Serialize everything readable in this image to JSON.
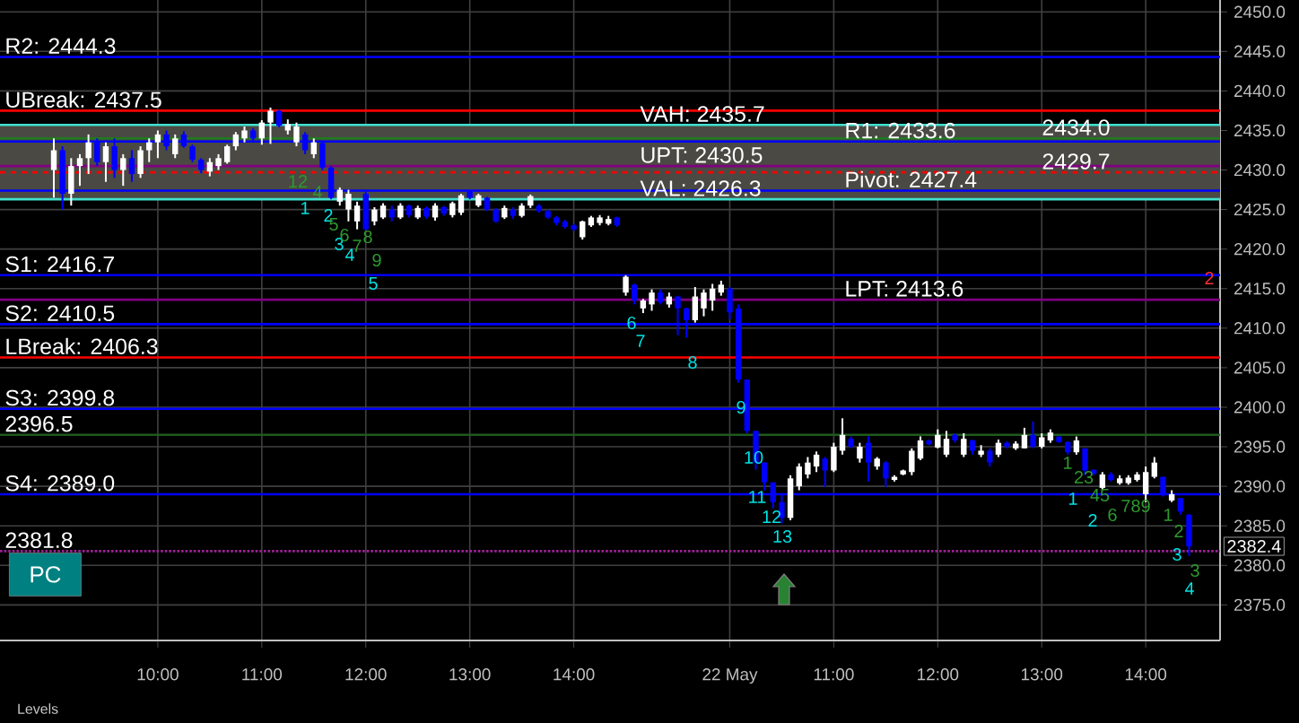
{
  "chart_data": {
    "type": "candlestick",
    "categories": [
      null,
      null,
      null,
      null,
      null,
      null,
      null,
      null,
      null,
      null,
      null,
      null,
      "10:00",
      null,
      null,
      null,
      null,
      null,
      null,
      null,
      null,
      null,
      null,
      null,
      "11:00",
      null,
      null,
      null,
      null,
      null,
      null,
      null,
      null,
      null,
      null,
      null,
      "12:00",
      null,
      null,
      null,
      null,
      null,
      null,
      null,
      null,
      null,
      null,
      null,
      "13:00",
      null,
      null,
      null,
      null,
      null,
      null,
      null,
      null,
      null,
      null,
      null,
      "14:00",
      null,
      null,
      null,
      null,
      null,
      null,
      null,
      null,
      null,
      null,
      null,
      null,
      null,
      null,
      null,
      null,
      null,
      "22 May",
      null,
      null,
      null,
      null,
      null,
      null,
      null,
      null,
      null,
      null,
      null,
      "11:00",
      null,
      null,
      null,
      null,
      null,
      null,
      null,
      null,
      null,
      null,
      null,
      "12:00",
      null,
      null,
      null,
      null,
      null,
      null,
      null,
      null,
      null,
      null,
      null,
      "13:00",
      null,
      null,
      null,
      null,
      null,
      null,
      null,
      null,
      null,
      null,
      null,
      "14:00",
      null,
      null,
      null,
      null,
      null
    ],
    "ohlc": [
      [
        2430.0,
        2434.0,
        2426.5,
        2432.5
      ],
      [
        2432.5,
        2433.0,
        2425.0,
        2427.0
      ],
      [
        2427.0,
        2431.5,
        2425.5,
        2430.5
      ],
      [
        2430.5,
        2432.0,
        2428.0,
        2431.5
      ],
      [
        2431.5,
        2434.5,
        2429.5,
        2433.5
      ],
      [
        2433.5,
        2434.0,
        2430.5,
        2431.0
      ],
      [
        2431.0,
        2433.5,
        2428.5,
        2433.0
      ],
      [
        2433.0,
        2434.0,
        2429.0,
        2430.0
      ],
      [
        2430.0,
        2432.0,
        2428.0,
        2431.5
      ],
      [
        2431.5,
        2432.5,
        2428.5,
        2429.5
      ],
      [
        2429.5,
        2433.0,
        2429.0,
        2432.5
      ],
      [
        2432.5,
        2434.0,
        2431.0,
        2433.5
      ],
      [
        2433.5,
        2435.0,
        2431.5,
        2434.5
      ],
      [
        2434.5,
        2435.0,
        2432.5,
        2433.0
      ],
      [
        2432.0,
        2434.5,
        2431.5,
        2434.0
      ],
      [
        2434.5,
        2434.9,
        2432.8,
        2433.0
      ],
      [
        2433.0,
        2433.2,
        2431.0,
        2431.3
      ],
      [
        2431.3,
        2431.5,
        2429.6,
        2430.0
      ],
      [
        2429.8,
        2431.5,
        2429.2,
        2431.0
      ],
      [
        2430.5,
        2432.0,
        2430.0,
        2431.5
      ],
      [
        2431.0,
        2433.2,
        2430.8,
        2433.0
      ],
      [
        2433.0,
        2434.8,
        2432.5,
        2434.5
      ],
      [
        2434.0,
        2435.5,
        2433.5,
        2435.0
      ],
      [
        2435.0,
        2435.3,
        2433.6,
        2434.0
      ],
      [
        2434.0,
        2436.3,
        2433.2,
        2436.0
      ],
      [
        2436.0,
        2437.9,
        2433.3,
        2437.5
      ],
      [
        2437.5,
        2437.6,
        2435.4,
        2435.6
      ],
      [
        2435.0,
        2436.4,
        2434.5,
        2435.8
      ],
      [
        2433.5,
        2436.0,
        2433.0,
        2435.5
      ],
      [
        2434.5,
        2434.8,
        2432.0,
        2432.5
      ],
      [
        2432.0,
        2434.0,
        2431.5,
        2433.5
      ],
      [
        2433.4,
        2433.5,
        2430.0,
        2430.3
      ],
      [
        2430.3,
        2430.5,
        2426.3,
        2426.5
      ],
      [
        2426.0,
        2427.8,
        2425.5,
        2427.5
      ],
      [
        2425.0,
        2427.5,
        2423.5,
        2427.0
      ],
      [
        2423.5,
        2426.0,
        2422.5,
        2425.5
      ],
      [
        2427.0,
        2427.3,
        2422.4,
        2422.5
      ],
      [
        2423.5,
        2425.3,
        2423.0,
        2425.0
      ],
      [
        2424.0,
        2425.8,
        2423.8,
        2425.5
      ],
      [
        2425.0,
        2425.5,
        2423.5,
        2424.0
      ],
      [
        2424.0,
        2425.8,
        2423.8,
        2425.5
      ],
      [
        2425.5,
        2425.6,
        2424.0,
        2424.3
      ],
      [
        2424.0,
        2425.5,
        2423.8,
        2425.2
      ],
      [
        2425.2,
        2425.4,
        2423.8,
        2424.1
      ],
      [
        2424.0,
        2425.8,
        2423.6,
        2425.5
      ],
      [
        2425.3,
        2425.5,
        2424.2,
        2424.5
      ],
      [
        2424.3,
        2426.0,
        2424.0,
        2425.8
      ],
      [
        2424.6,
        2427.0,
        2424.3,
        2426.8
      ],
      [
        2427.3,
        2427.4,
        2426.3,
        2426.5
      ],
      [
        2425.5,
        2427.0,
        2425.3,
        2426.8
      ],
      [
        2426.5,
        2426.6,
        2424.8,
        2425.0
      ],
      [
        2425.0,
        2425.2,
        2423.3,
        2423.5
      ],
      [
        2424.0,
        2425.5,
        2423.8,
        2425.2
      ],
      [
        2425.0,
        2425.3,
        2423.8,
        2424.2
      ],
      [
        2424.2,
        2425.8,
        2424.0,
        2425.5
      ],
      [
        2425.5,
        2426.9,
        2425.2,
        2426.7
      ],
      [
        2425.5,
        2425.7,
        2424.6,
        2424.8
      ],
      [
        2424.8,
        2425.0,
        2423.8,
        2424.0
      ],
      [
        2424.0,
        2424.2,
        2423.0,
        2423.3
      ],
      [
        2423.5,
        2423.7,
        2422.6,
        2422.8
      ],
      [
        2423.0,
        2423.2,
        2422.3,
        2422.5
      ],
      [
        2421.5,
        2423.6,
        2421.2,
        2423.5
      ],
      [
        2423.0,
        2424.2,
        2422.8,
        2424.0
      ],
      [
        2423.3,
        2424.3,
        2423.0,
        2424.0
      ],
      [
        2423.2,
        2424.2,
        2423.0,
        2423.8
      ],
      [
        2424.0,
        2424.1,
        2422.8,
        2423.0
      ],
      [
        2414.5,
        2416.7,
        2414.1,
        2416.5
      ],
      [
        2415.5,
        2415.6,
        2413.0,
        2413.5
      ],
      [
        2412.5,
        2413.7,
        2411.9,
        2413.5
      ],
      [
        2413.0,
        2414.9,
        2412.2,
        2414.5
      ],
      [
        2414.5,
        2414.9,
        2413.0,
        2413.3
      ],
      [
        2413.0,
        2414.5,
        2412.6,
        2414.0
      ],
      [
        2414.0,
        2414.1,
        2409.1,
        2412.5
      ],
      [
        2412.5,
        2412.6,
        2408.8,
        2411.0
      ],
      [
        2411.0,
        2415.2,
        2410.7,
        2414.0
      ],
      [
        2412.5,
        2414.9,
        2411.5,
        2414.5
      ],
      [
        2413.5,
        2415.6,
        2412.2,
        2415.0
      ],
      [
        2414.5,
        2416.0,
        2414.1,
        2415.5
      ],
      [
        2415.0,
        2415.2,
        2411.1,
        2412.0
      ],
      [
        2412.5,
        2413.0,
        2403.1,
        2403.5
      ],
      [
        2403.5,
        2403.5,
        2396.7,
        2397.0
      ],
      [
        2397.0,
        2397.0,
        2392.1,
        2393.0
      ],
      [
        2393.0,
        2393.0,
        2389.5,
        2390.5
      ],
      [
        2390.5,
        2390.5,
        2387.2,
        2388.0
      ],
      [
        2388.0,
        2389.1,
        2385.3,
        2386.0
      ],
      [
        2386.0,
        2391.4,
        2385.7,
        2391.0
      ],
      [
        2390.0,
        2392.9,
        2389.5,
        2392.5
      ],
      [
        2391.5,
        2393.7,
        2391.0,
        2393.0
      ],
      [
        2392.5,
        2394.4,
        2391.8,
        2394.0
      ],
      [
        2393.5,
        2393.7,
        2389.9,
        2392.0
      ],
      [
        2392.0,
        2395.5,
        2391.8,
        2395.0
      ],
      [
        2394.5,
        2398.6,
        2394.0,
        2396.5
      ],
      [
        2396.0,
        2396.3,
        2394.8,
        2395.0
      ],
      [
        2393.5,
        2395.5,
        2393.0,
        2395.0
      ],
      [
        2395.5,
        2396.3,
        2390.6,
        2393.0
      ],
      [
        2392.5,
        2393.7,
        2392.1,
        2393.5
      ],
      [
        2393.0,
        2393.2,
        2389.9,
        2391.0
      ],
      [
        2390.8,
        2391.4,
        2390.6,
        2391.2
      ],
      [
        2391.5,
        2392.1,
        2391.4,
        2392.0
      ],
      [
        2391.8,
        2394.8,
        2391.4,
        2394.5
      ],
      [
        2393.5,
        2396.3,
        2393.3,
        2395.8
      ],
      [
        2395.8,
        2395.9,
        2395.2,
        2395.3
      ],
      [
        2394.9,
        2397.2,
        2394.8,
        2396.5
      ],
      [
        2394.0,
        2397.0,
        2393.7,
        2396.0
      ],
      [
        2396.5,
        2396.7,
        2395.5,
        2395.8
      ],
      [
        2394.0,
        2396.7,
        2393.7,
        2396.0
      ],
      [
        2395.8,
        2395.9,
        2394.0,
        2394.5
      ],
      [
        2394.0,
        2395.2,
        2393.7,
        2394.5
      ],
      [
        2394.5,
        2394.8,
        2392.5,
        2393.0
      ],
      [
        2394.0,
        2395.9,
        2393.7,
        2395.5
      ],
      [
        2395.5,
        2395.7,
        2394.8,
        2395.0
      ],
      [
        2394.8,
        2395.7,
        2394.6,
        2395.4
      ],
      [
        2394.8,
        2397.4,
        2394.8,
        2396.5
      ],
      [
        2396.5,
        2398.2,
        2394.8,
        2395.0
      ],
      [
        2395.0,
        2396.7,
        2394.8,
        2396.2
      ],
      [
        2395.8,
        2397.2,
        2395.5,
        2396.8
      ],
      [
        2396.3,
        2396.3,
        2395.5,
        2395.6
      ],
      [
        2395.6,
        2395.7,
        2394.0,
        2394.3
      ],
      [
        2394.3,
        2396.3,
        2394.0,
        2395.8
      ],
      [
        2394.8,
        2394.8,
        2391.4,
        2392.0
      ],
      [
        2392.1,
        2392.1,
        2391.4,
        2391.6
      ],
      [
        2389.8,
        2391.8,
        2389.5,
        2391.5
      ],
      [
        2391.5,
        2391.8,
        2390.6,
        2390.8
      ],
      [
        2390.4,
        2391.4,
        2390.2,
        2391.0
      ],
      [
        2390.4,
        2391.4,
        2390.2,
        2391.1
      ],
      [
        2390.8,
        2391.8,
        2390.6,
        2391.5
      ],
      [
        2389.0,
        2392.5,
        2388.0,
        2391.8
      ],
      [
        2391.2,
        2393.7,
        2391.0,
        2393.0
      ],
      [
        2391.2,
        2391.2,
        2388.7,
        2389.0
      ],
      [
        2388.2,
        2389.5,
        2388.0,
        2389.0
      ],
      [
        2388.5,
        2388.5,
        2386.4,
        2386.8
      ],
      [
        2386.4,
        2386.5,
        2381.2,
        2382.4
      ]
    ],
    "colors": [
      "#ffffff",
      "#0000ff",
      "#ffffff",
      "#ffffff",
      "#ffffff",
      "#0000ff",
      "#ffffff",
      "#0000ff",
      "#ffffff",
      "#0000ff",
      "#ffffff",
      "#ffffff",
      "#ffffff",
      "#0000ff",
      "#ffffff",
      "#0000ff",
      "#0000ff",
      "#0000ff",
      "#ffffff",
      "#ffffff",
      "#ffffff",
      "#ffffff",
      "#ffffff",
      "#0000ff",
      "#ffffff",
      "#ffffff",
      "#0000ff",
      "#ffffff",
      "#ffffff",
      "#0000ff",
      "#ffffff",
      "#0000ff",
      "#0000ff",
      "#ffffff",
      "#ffffff",
      "#ffffff",
      "#0000ff",
      "#ffffff",
      "#ffffff",
      "#0000ff",
      "#ffffff",
      "#0000ff",
      "#ffffff",
      "#0000ff",
      "#ffffff",
      "#0000ff",
      "#ffffff",
      "#ffffff",
      "#0000ff",
      "#ffffff",
      "#0000ff",
      "#0000ff",
      "#ffffff",
      "#0000ff",
      "#ffffff",
      "#ffffff",
      "#0000ff",
      "#0000ff",
      "#0000ff",
      "#0000ff",
      "#0000ff",
      "#ffffff",
      "#ffffff",
      "#ffffff",
      "#ffffff",
      "#0000ff",
      "#ffffff",
      "#0000ff",
      "#ffffff",
      "#ffffff",
      "#0000ff",
      "#ffffff",
      "#0000ff",
      "#0000ff",
      "#ffffff",
      "#ffffff",
      "#ffffff",
      "#ffffff",
      "#0000ff",
      "#0000ff",
      "#0000ff",
      "#0000ff",
      "#0000ff",
      "#0000ff",
      "#0000ff",
      "#ffffff",
      "#ffffff",
      "#ffffff",
      "#ffffff",
      "#0000ff",
      "#ffffff",
      "#ffffff",
      "#0000ff",
      "#ffffff",
      "#0000ff",
      "#ffffff",
      "#0000ff",
      "#ffffff",
      "#ffffff",
      "#ffffff",
      "#ffffff",
      "#0000ff",
      "#ffffff",
      "#ffffff",
      "#0000ff",
      "#ffffff",
      "#0000ff",
      "#ffffff",
      "#0000ff",
      "#ffffff",
      "#0000ff",
      "#ffffff",
      "#ffffff",
      "#0000ff",
      "#ffffff",
      "#ffffff",
      "#0000ff",
      "#0000ff",
      "#ffffff",
      "#0000ff",
      "#0000ff",
      "#ffffff",
      "#0000ff",
      "#ffffff",
      "#ffffff",
      "#ffffff",
      "#ffffff",
      "#ffffff",
      "#0000ff",
      "#ffffff",
      "#0000ff",
      "#0000ff"
    ],
    "ylim": [
      2370.5,
      2451.5
    ],
    "yticks": [
      {
        "value": 2375,
        "label": "2375.0"
      },
      {
        "value": 2380,
        "label": "2380.0"
      },
      {
        "value": 2385,
        "label": "2385.0"
      },
      {
        "value": 2390,
        "label": "2390.0"
      },
      {
        "value": 2395,
        "label": "2395.0"
      },
      {
        "value": 2400,
        "label": "2400.0"
      },
      {
        "value": 2405,
        "label": "2405.0"
      },
      {
        "value": 2410,
        "label": "2410.0"
      },
      {
        "value": 2415,
        "label": "2415.0"
      },
      {
        "value": 2420,
        "label": "2420.0"
      },
      {
        "value": 2425,
        "label": "2425.0"
      },
      {
        "value": 2430,
        "label": "2430.0"
      },
      {
        "value": 2435,
        "label": "2435.0"
      },
      {
        "value": 2440,
        "label": "2440.0"
      },
      {
        "value": 2445,
        "label": "2445.0"
      },
      {
        "value": 2450,
        "label": "2450.0"
      }
    ],
    "grid": true,
    "bands": [
      {
        "axis": "y",
        "from": 2426.3,
        "to": 2435.7,
        "color": "#4a4943"
      }
    ],
    "ref_lines": [
      {
        "axis": "y",
        "value": 2444.3,
        "label": "R2: 2444.3",
        "color": "#0000ff"
      },
      {
        "axis": "y",
        "value": 2437.5,
        "label": "UBreak: 2437.5",
        "color": "#ff0000"
      },
      {
        "axis": "y",
        "value": 2435.7,
        "label": "VAH: 2435.7",
        "color": "#40e0d0"
      },
      {
        "axis": "y",
        "value": 2433.6,
        "label": "R1: 2433.6",
        "color": "#0000ff"
      },
      {
        "axis": "y",
        "value": 2430.5,
        "label": "UPT: 2430.5",
        "color": "#800080"
      },
      {
        "axis": "y",
        "value": 2427.4,
        "label": "Pivot: 2427.4",
        "color": "#0000ff"
      },
      {
        "axis": "y",
        "value": 2426.3,
        "label": "VAL: 2426.3",
        "color": "#40e0d0"
      },
      {
        "axis": "y",
        "value": 2416.7,
        "label": "S1: 2416.7",
        "color": "#0000ff"
      },
      {
        "axis": "y",
        "value": 2413.6,
        "label": "LPT: 2413.6",
        "color": "#800080"
      },
      {
        "axis": "y",
        "value": 2410.5,
        "label": "S2: 2410.5",
        "color": "#0000ff"
      },
      {
        "axis": "y",
        "value": 2406.3,
        "label": "LBreak: 2406.3",
        "color": "#ff0000"
      },
      {
        "axis": "y",
        "value": 2399.8,
        "label": "S3: 2399.8",
        "color": "#0000ff"
      },
      {
        "axis": "y",
        "value": 2389.0,
        "label": "S4: 2389.0",
        "color": "#0000ff"
      },
      {
        "axis": "y",
        "value": 2429.7,
        "label": "2429.7",
        "color": "#ff0000",
        "line_style": "dashed"
      },
      {
        "axis": "y",
        "value": 2434.0,
        "label": "2434.0",
        "color": "#1e7a1e"
      },
      {
        "axis": "y",
        "value": 2396.5,
        "label": "2396.5",
        "color": "#1e5a1e"
      },
      {
        "axis": "y",
        "value": 2381.8,
        "label": "2381.8",
        "color": "#a0209a",
        "line_style": "dotted"
      }
    ],
    "annotations": [
      "PC",
      "Levels",
      "2382.4",
      "2",
      "1",
      "2",
      "3",
      "4",
      "5",
      "12",
      "4",
      "5",
      "6",
      "7",
      "8",
      "9",
      "6",
      "7",
      "8",
      "9",
      "10",
      "11",
      "12",
      "13",
      "1",
      "23",
      "45",
      "6",
      "789",
      "1",
      "2",
      "1",
      "2",
      "3",
      "3",
      "4"
    ]
  }
}
